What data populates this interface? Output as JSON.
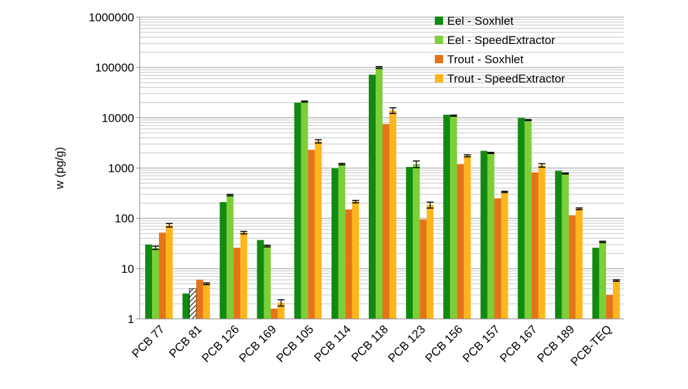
{
  "chart_data": {
    "type": "bar",
    "title": "",
    "xlabel": "",
    "ylabel": "w (pg/g)",
    "yscale": "log",
    "ylim": [
      1,
      1000000
    ],
    "yticks": [
      "1",
      "10",
      "100",
      "1000",
      "10000",
      "100000",
      "1000000"
    ],
    "grid": "horizontal major and minor (log) gridlines",
    "legend_position": "top-right",
    "categories": [
      "PCB 77",
      "PCB 81",
      "PCB 126",
      "PCB 169",
      "PCB 105",
      "PCB 114",
      "PCB 118",
      "PCB 123",
      "PCB 156",
      "PCB 157",
      "PCB 167",
      "PCB 189",
      "PCB-TEQ"
    ],
    "series": [
      {
        "name": "Eel - Soxhlet",
        "color": "#118a11",
        "values": [
          30,
          3.2,
          210,
          37,
          20000,
          980,
          72000,
          1050,
          11500,
          2200,
          10000,
          880,
          26
        ],
        "errors": [
          null,
          null,
          null,
          null,
          null,
          null,
          null,
          null,
          null,
          null,
          null,
          null,
          null
        ]
      },
      {
        "name": "Eel - SpeedExtractor",
        "color": "#7ccf36",
        "values": [
          26,
          4,
          290,
          28,
          21000,
          1200,
          100000,
          1200,
          11000,
          2000,
          9000,
          780,
          34
        ],
        "errors": [
          2,
          null,
          10,
          1,
          500,
          40,
          4000,
          180,
          300,
          50,
          200,
          20,
          1
        ],
        "hatched": [
          false,
          true,
          false,
          false,
          false,
          false,
          false,
          false,
          false,
          false,
          false,
          false,
          false
        ]
      },
      {
        "name": "Trout - Soxhlet",
        "color": "#e57418",
        "values": [
          52,
          6,
          26,
          1.6,
          2300,
          150,
          7500,
          95,
          1200,
          250,
          820,
          115,
          3
        ],
        "errors": [
          null,
          null,
          null,
          null,
          null,
          null,
          null,
          null,
          null,
          null,
          null,
          null,
          null
        ]
      },
      {
        "name": "Trout - SpeedExtractor",
        "color": "#ffb61c",
        "values": [
          73,
          5,
          52,
          2.1,
          3400,
          215,
          14000,
          185,
          1750,
          335,
          1130,
          155,
          5.8
        ],
        "errors": [
          6,
          0.2,
          3,
          0.3,
          250,
          12,
          1800,
          25,
          80,
          10,
          90,
          6,
          0.2
        ]
      }
    ]
  }
}
